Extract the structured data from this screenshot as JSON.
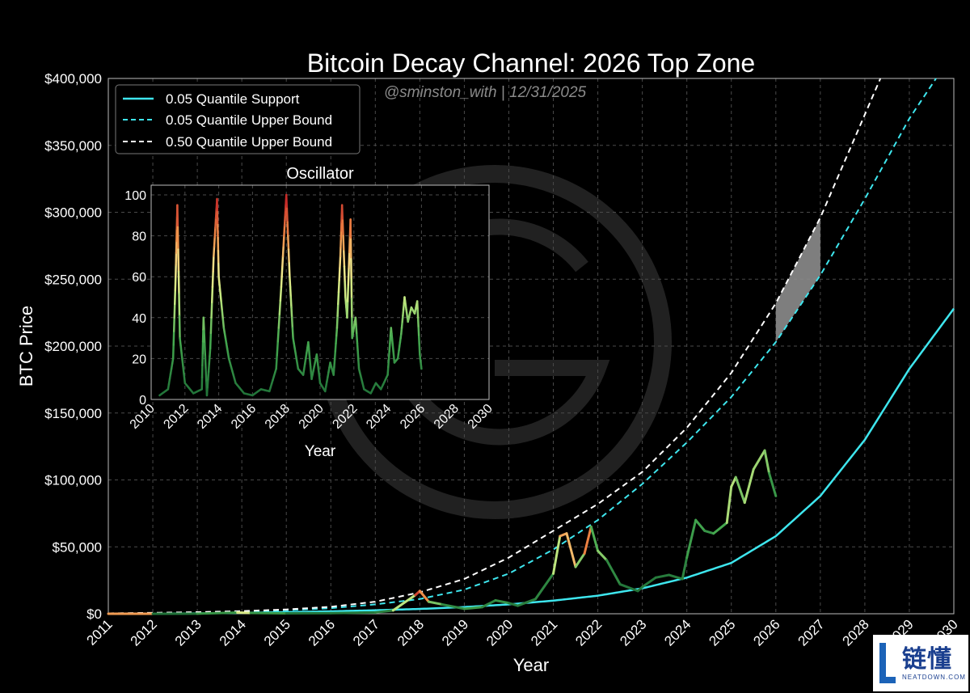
{
  "chart_data": [
    {
      "type": "line",
      "title": "Bitcoin Decay Channel: 2026 Top Zone",
      "subtitle": "@sminston_with  |  12/31/2025",
      "xlabel": "Year",
      "ylabel": "BTC Price",
      "xlim": [
        2011,
        2030
      ],
      "ylim": [
        0,
        400000
      ],
      "x_ticks": [
        "2011",
        "2012",
        "2013",
        "2014",
        "2015",
        "2016",
        "2017",
        "2018",
        "2019",
        "2020",
        "2021",
        "2022",
        "2023",
        "2024",
        "2025",
        "2026",
        "2027",
        "2028",
        "2029",
        "2030"
      ],
      "y_ticks": [
        "$0",
        "$50,000",
        "$100,000",
        "$150,000",
        "$200,000",
        "$250,000",
        "$300,000",
        "$350,000",
        "$400,000"
      ],
      "grid": true,
      "legend_position": "top-left",
      "series": [
        {
          "name": "0.05 Quantile Support",
          "style": "solid",
          "color": "#3ee6ee",
          "x": [
            2011,
            2012,
            2013,
            2014,
            2015,
            2016,
            2017,
            2018,
            2019,
            2020,
            2021,
            2022,
            2023,
            2024,
            2025,
            2026,
            2027,
            2028,
            2029,
            2030
          ],
          "values": [
            0,
            100,
            300,
            700,
            1200,
            1800,
            2600,
            3600,
            5000,
            7000,
            9800,
            13500,
            19000,
            27000,
            38000,
            58000,
            88000,
            130000,
            183000,
            228000
          ]
        },
        {
          "name": "0.05 Quantile Upper Bound",
          "style": "dashed",
          "color": "#3ee6ee",
          "x": [
            2011,
            2012,
            2013,
            2014,
            2015,
            2016,
            2017,
            2018,
            2019,
            2020,
            2021,
            2022,
            2023,
            2024,
            2025,
            2026,
            2027,
            2028,
            2029,
            2029.6
          ],
          "values": [
            200,
            400,
            800,
            1500,
            2600,
            4200,
            7000,
            11000,
            18000,
            30000,
            48000,
            70000,
            97000,
            128000,
            162000,
            203000,
            253000,
            310000,
            370000,
            400000
          ]
        },
        {
          "name": "0.50 Quantile Upper Bound",
          "style": "dashed",
          "color": "#ffffff",
          "x": [
            2011,
            2012,
            2013,
            2014,
            2015,
            2016,
            2017,
            2018,
            2019,
            2020,
            2021,
            2022,
            2023,
            2024,
            2025,
            2026,
            2027,
            2028,
            2028.35
          ],
          "values": [
            300,
            700,
            1200,
            2000,
            3200,
            5200,
            9000,
            16000,
            26000,
            42000,
            62000,
            82000,
            106000,
            139000,
            180000,
            232000,
            296000,
            373000,
            400000
          ]
        },
        {
          "name": "BTC price",
          "style": "oscillator-colored",
          "x": [
            2011,
            2012,
            2013,
            2013.9,
            2014.2,
            2015,
            2016,
            2017,
            2017.4,
            2017.9,
            2018,
            2018.2,
            2018.5,
            2019,
            2019.4,
            2019.7,
            2020,
            2020.2,
            2020.6,
            2021,
            2021.15,
            2021.3,
            2021.5,
            2021.7,
            2021.85,
            2022,
            2022.2,
            2022.5,
            2022.9,
            2023,
            2023.3,
            2023.6,
            2023.9,
            2024,
            2024.2,
            2024.4,
            2024.6,
            2024.9,
            2025,
            2025.1,
            2025.3,
            2025.5,
            2025.75,
            2025.85,
            2026
          ],
          "values": [
            1,
            10,
            100,
            900,
            600,
            300,
            430,
            1000,
            2500,
            14000,
            17000,
            9000,
            7000,
            3700,
            5000,
            10000,
            8000,
            6000,
            11000,
            30000,
            58000,
            60000,
            35000,
            45000,
            65000,
            47000,
            40000,
            22000,
            17000,
            20000,
            27000,
            29000,
            26000,
            42000,
            70000,
            62000,
            60000,
            68000,
            95000,
            102000,
            83000,
            108000,
            122000,
            105000,
            88000
          ]
        }
      ],
      "highlight_zone": {
        "label": "2026 Top Zone",
        "x_range": [
          2026,
          2027
        ]
      }
    },
    {
      "type": "line",
      "title": "Oscillator",
      "xlabel": "Year",
      "ylabel": "",
      "xlim": [
        2010,
        2030
      ],
      "ylim": [
        0,
        100
      ],
      "x_ticks": [
        "2010",
        "2012",
        "2014",
        "2016",
        "2018",
        "2020",
        "2022",
        "2024",
        "2026",
        "2028",
        "2030"
      ],
      "y_ticks": [
        "0",
        "20",
        "40",
        "60",
        "80",
        "100"
      ],
      "grid": true,
      "series": [
        {
          "style": "oscillator-colored",
          "x": [
            2010.5,
            2011,
            2011.3,
            2011.45,
            2011.55,
            2011.7,
            2012,
            2012.5,
            2013,
            2013.1,
            2013.3,
            2013.5,
            2013.7,
            2013.9,
            2014,
            2014.3,
            2014.6,
            2015,
            2015.5,
            2016,
            2016.5,
            2017,
            2017.4,
            2017.7,
            2017.9,
            2018,
            2018.2,
            2018.4,
            2018.7,
            2019,
            2019.3,
            2019.5,
            2019.8,
            2020,
            2020.3,
            2020.6,
            2020.8,
            2021,
            2021.2,
            2021.3,
            2021.5,
            2021.6,
            2021.8,
            2021.9,
            2022.1,
            2022.3,
            2022.6,
            2023,
            2023.3,
            2023.6,
            2024,
            2024.2,
            2024.4,
            2024.6,
            2024.8,
            2025,
            2025.2,
            2025.4,
            2025.6,
            2025.75,
            2025.9,
            2026
          ],
          "values": [
            2,
            5,
            20,
            60,
            95,
            30,
            8,
            3,
            5,
            40,
            2,
            25,
            70,
            98,
            60,
            35,
            20,
            8,
            3,
            2,
            5,
            4,
            15,
            55,
            85,
            100,
            60,
            30,
            15,
            12,
            28,
            10,
            22,
            8,
            4,
            18,
            12,
            35,
            70,
            95,
            50,
            40,
            88,
            30,
            40,
            15,
            5,
            3,
            8,
            5,
            12,
            35,
            18,
            20,
            32,
            50,
            38,
            45,
            42,
            48,
            22,
            15
          ]
        }
      ]
    }
  ]
}
